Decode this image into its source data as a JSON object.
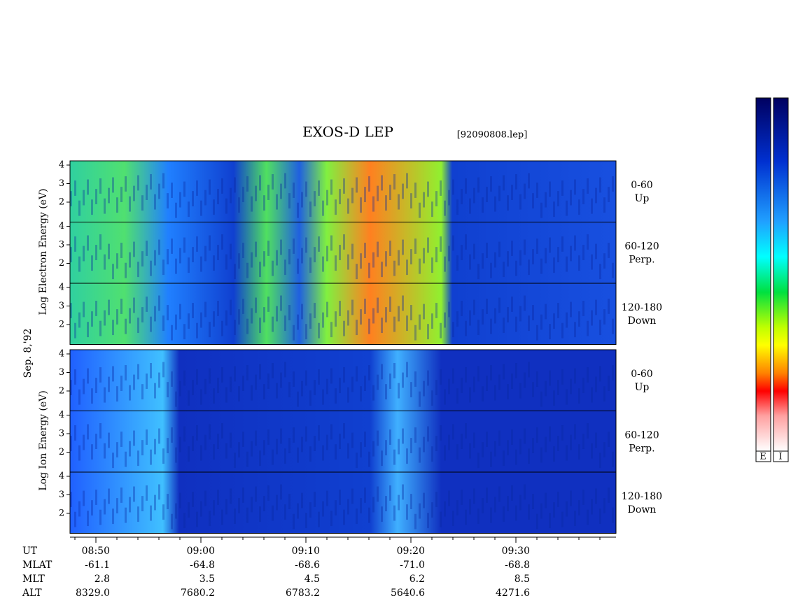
{
  "header": {
    "title": "EXOS-D LEP",
    "file": "[92090808.lep]"
  },
  "date": "Sep. 8,'92",
  "electron": {
    "axis_label": "Log Electron Energy (eV)",
    "panels": [
      {
        "pitch": "0-60",
        "direction": "Up",
        "yticks": [
          4,
          3,
          2
        ]
      },
      {
        "pitch": "60-120",
        "direction": "Perp.",
        "yticks": [
          4,
          3,
          2
        ]
      },
      {
        "pitch": "120-180",
        "direction": "Down",
        "yticks": [
          4,
          3,
          2
        ]
      }
    ]
  },
  "ion": {
    "axis_label": "Log Ion Energy (eV)",
    "panels": [
      {
        "pitch": "0-60",
        "direction": "Up",
        "yticks": [
          4,
          3,
          2
        ]
      },
      {
        "pitch": "60-120",
        "direction": "Perp.",
        "yticks": [
          4,
          3,
          2
        ]
      },
      {
        "pitch": "120-180",
        "direction": "Down",
        "yticks": [
          4,
          3,
          2
        ]
      }
    ]
  },
  "orbit": {
    "rows": [
      {
        "label": "UT",
        "values": [
          "08:50",
          "09:00",
          "09:10",
          "09:20",
          "09:30"
        ]
      },
      {
        "label": "MLAT",
        "values": [
          "-61.1",
          "-64.8",
          "-68.6",
          "-71.0",
          "-68.8"
        ]
      },
      {
        "label": "MLT",
        "values": [
          "2.8",
          "3.5",
          "4.5",
          "6.2",
          "8.5"
        ]
      },
      {
        "label": "ALT",
        "values": [
          "8329.0",
          "7680.2",
          "6783.2",
          "5640.6",
          "4271.6"
        ]
      }
    ]
  },
  "colorbars": [
    "E",
    "I"
  ]
}
